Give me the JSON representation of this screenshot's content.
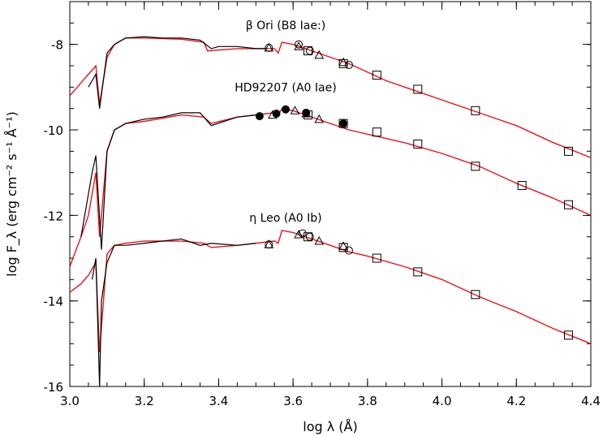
{
  "chart_data": {
    "type": "line",
    "xlabel": "log λ (Å)",
    "ylabel": "log F_λ (erg cm⁻² s⁻¹ Å⁻¹)",
    "xlim": [
      3.0,
      4.4
    ],
    "ylim": [
      -16.0,
      -7.0
    ],
    "x_ticks": [
      "3.0",
      "3.2",
      "3.4",
      "3.6",
      "3.8",
      "4.0",
      "4.2",
      "4.4"
    ],
    "y_ticks": [
      "-8",
      "-10",
      "-12",
      "-14",
      "-16"
    ],
    "y_tick_values": [
      -8,
      -10,
      -12,
      -14,
      -16
    ],
    "x_tick_values": [
      3.0,
      3.2,
      3.4,
      3.6,
      3.8,
      4.0,
      4.2,
      4.4
    ],
    "grid": false,
    "colors": {
      "observed": "#000000",
      "model": "#e8141a",
      "markers": "#000000"
    },
    "stars": [
      {
        "label": "β Ori (B8 Iae:)",
        "observed": [
          [
            3.05,
            -9.0
          ],
          [
            3.07,
            -8.7
          ],
          [
            3.08,
            -9.5
          ],
          [
            3.1,
            -8.2
          ],
          [
            3.12,
            -8.0
          ],
          [
            3.15,
            -7.85
          ],
          [
            3.2,
            -7.82
          ],
          [
            3.25,
            -7.85
          ],
          [
            3.3,
            -7.85
          ],
          [
            3.35,
            -7.9
          ],
          [
            3.38,
            -8.1
          ],
          [
            3.4,
            -8.05
          ],
          [
            3.45,
            -8.05
          ],
          [
            3.5,
            -8.1
          ],
          [
            3.53,
            -8.1
          ]
        ],
        "model": [
          [
            3.0,
            -9.2
          ],
          [
            3.03,
            -8.9
          ],
          [
            3.05,
            -8.7
          ],
          [
            3.07,
            -8.5
          ],
          [
            3.08,
            -9.4
          ],
          [
            3.1,
            -8.3
          ],
          [
            3.12,
            -8.0
          ],
          [
            3.15,
            -7.85
          ],
          [
            3.2,
            -7.85
          ],
          [
            3.3,
            -7.88
          ],
          [
            3.36,
            -7.95
          ],
          [
            3.37,
            -8.15
          ],
          [
            3.45,
            -8.1
          ],
          [
            3.55,
            -8.1
          ],
          [
            3.56,
            -8.2
          ],
          [
            3.57,
            -7.95
          ],
          [
            3.6,
            -8.0
          ],
          [
            3.65,
            -8.15
          ],
          [
            3.7,
            -8.3
          ],
          [
            3.75,
            -8.45
          ],
          [
            3.8,
            -8.65
          ],
          [
            3.85,
            -8.85
          ],
          [
            3.9,
            -9.0
          ],
          [
            4.0,
            -9.3
          ],
          [
            4.1,
            -9.6
          ],
          [
            4.2,
            -9.9
          ],
          [
            4.3,
            -10.3
          ],
          [
            4.4,
            -10.65
          ]
        ],
        "squares": [
          [
            3.64,
            -8.15
          ],
          [
            3.735,
            -8.45
          ],
          [
            3.825,
            -8.72
          ],
          [
            3.935,
            -9.05
          ],
          [
            4.09,
            -9.55
          ],
          [
            4.34,
            -10.5
          ]
        ],
        "circles": [
          [
            3.535,
            -8.08
          ],
          [
            3.615,
            -8.0
          ],
          [
            3.645,
            -8.15
          ],
          [
            3.75,
            -8.48
          ]
        ],
        "triangles": [
          [
            3.535,
            -8.08
          ],
          [
            3.615,
            -8.05
          ],
          [
            3.67,
            -8.25
          ],
          [
            3.735,
            -8.42
          ]
        ],
        "filled_circles": [],
        "label_pos": [
          3.58,
          -7.65
        ]
      },
      {
        "label": "HD92207 (A0 Iae)",
        "observed": [
          [
            3.03,
            -12.5
          ],
          [
            3.06,
            -11.0
          ],
          [
            3.07,
            -10.6
          ],
          [
            3.085,
            -12.8
          ],
          [
            3.1,
            -10.5
          ],
          [
            3.12,
            -10.0
          ],
          [
            3.15,
            -9.85
          ],
          [
            3.2,
            -9.75
          ],
          [
            3.25,
            -9.7
          ],
          [
            3.3,
            -9.6
          ],
          [
            3.35,
            -9.6
          ],
          [
            3.38,
            -9.9
          ],
          [
            3.45,
            -9.7
          ],
          [
            3.5,
            -9.65
          ]
        ],
        "model": [
          [
            3.0,
            -13.2
          ],
          [
            3.03,
            -12.5
          ],
          [
            3.05,
            -12.0
          ],
          [
            3.07,
            -11.0
          ],
          [
            3.08,
            -12.5
          ],
          [
            3.1,
            -10.5
          ],
          [
            3.12,
            -10.0
          ],
          [
            3.15,
            -9.85
          ],
          [
            3.2,
            -9.8
          ],
          [
            3.3,
            -9.65
          ],
          [
            3.36,
            -9.7
          ],
          [
            3.38,
            -9.85
          ],
          [
            3.45,
            -9.7
          ],
          [
            3.55,
            -9.6
          ],
          [
            3.56,
            -9.65
          ],
          [
            3.57,
            -9.5
          ],
          [
            3.6,
            -9.55
          ],
          [
            3.65,
            -9.7
          ],
          [
            3.7,
            -9.85
          ],
          [
            3.75,
            -10.0
          ],
          [
            3.8,
            -10.1
          ],
          [
            3.9,
            -10.3
          ],
          [
            4.0,
            -10.55
          ],
          [
            4.1,
            -10.85
          ],
          [
            4.2,
            -11.25
          ],
          [
            4.3,
            -11.6
          ],
          [
            4.4,
            -12.0
          ]
        ],
        "squares": [
          [
            3.64,
            -9.65
          ],
          [
            3.735,
            -9.85
          ],
          [
            3.825,
            -10.05
          ],
          [
            3.935,
            -10.33
          ],
          [
            4.09,
            -10.85
          ],
          [
            4.215,
            -11.3
          ],
          [
            4.34,
            -11.75
          ]
        ],
        "circles": [],
        "triangles": [
          [
            3.545,
            -9.65
          ],
          [
            3.605,
            -9.55
          ],
          [
            3.635,
            -9.62
          ],
          [
            3.67,
            -9.75
          ]
        ],
        "filled_circles": [
          [
            3.51,
            -9.68
          ],
          [
            3.555,
            -9.62
          ],
          [
            3.58,
            -9.52
          ],
          [
            3.635,
            -9.6
          ],
          [
            3.735,
            -9.85
          ]
        ],
        "label_pos": [
          3.58,
          -9.1
        ]
      },
      {
        "label": "η Leo (A0 Ib)",
        "observed": [
          [
            3.06,
            -13.5
          ],
          [
            3.07,
            -13.0
          ],
          [
            3.08,
            -16.0
          ],
          [
            3.085,
            -14.0
          ],
          [
            3.1,
            -13.1
          ],
          [
            3.12,
            -12.7
          ],
          [
            3.15,
            -12.7
          ],
          [
            3.2,
            -12.65
          ],
          [
            3.25,
            -12.6
          ],
          [
            3.3,
            -12.55
          ],
          [
            3.35,
            -12.7
          ],
          [
            3.38,
            -12.65
          ],
          [
            3.45,
            -12.7
          ],
          [
            3.5,
            -12.65
          ]
        ],
        "model": [
          [
            3.0,
            -13.8
          ],
          [
            3.03,
            -13.6
          ],
          [
            3.05,
            -13.4
          ],
          [
            3.07,
            -13.1
          ],
          [
            3.08,
            -15.2
          ],
          [
            3.1,
            -12.9
          ],
          [
            3.12,
            -12.7
          ],
          [
            3.15,
            -12.65
          ],
          [
            3.2,
            -12.6
          ],
          [
            3.3,
            -12.6
          ],
          [
            3.36,
            -12.65
          ],
          [
            3.38,
            -12.75
          ],
          [
            3.45,
            -12.7
          ],
          [
            3.55,
            -12.6
          ],
          [
            3.56,
            -12.65
          ],
          [
            3.57,
            -12.35
          ],
          [
            3.6,
            -12.4
          ],
          [
            3.65,
            -12.55
          ],
          [
            3.7,
            -12.7
          ],
          [
            3.75,
            -12.85
          ],
          [
            3.8,
            -12.95
          ],
          [
            3.9,
            -13.2
          ],
          [
            4.0,
            -13.5
          ],
          [
            4.1,
            -13.9
          ],
          [
            4.2,
            -14.25
          ],
          [
            4.3,
            -14.65
          ],
          [
            4.4,
            -15.0
          ]
        ],
        "squares": [
          [
            3.64,
            -12.5
          ],
          [
            3.735,
            -12.75
          ],
          [
            3.825,
            -13.0
          ],
          [
            3.935,
            -13.32
          ],
          [
            4.09,
            -13.85
          ],
          [
            4.34,
            -14.8
          ]
        ],
        "circles": [
          [
            3.535,
            -12.68
          ],
          [
            3.625,
            -12.42
          ],
          [
            3.645,
            -12.5
          ],
          [
            3.75,
            -12.82
          ]
        ],
        "triangles": [
          [
            3.535,
            -12.68
          ],
          [
            3.615,
            -12.45
          ],
          [
            3.67,
            -12.6
          ],
          [
            3.735,
            -12.72
          ]
        ],
        "filled_circles": [],
        "label_pos": [
          3.58,
          -12.15
        ]
      }
    ]
  }
}
